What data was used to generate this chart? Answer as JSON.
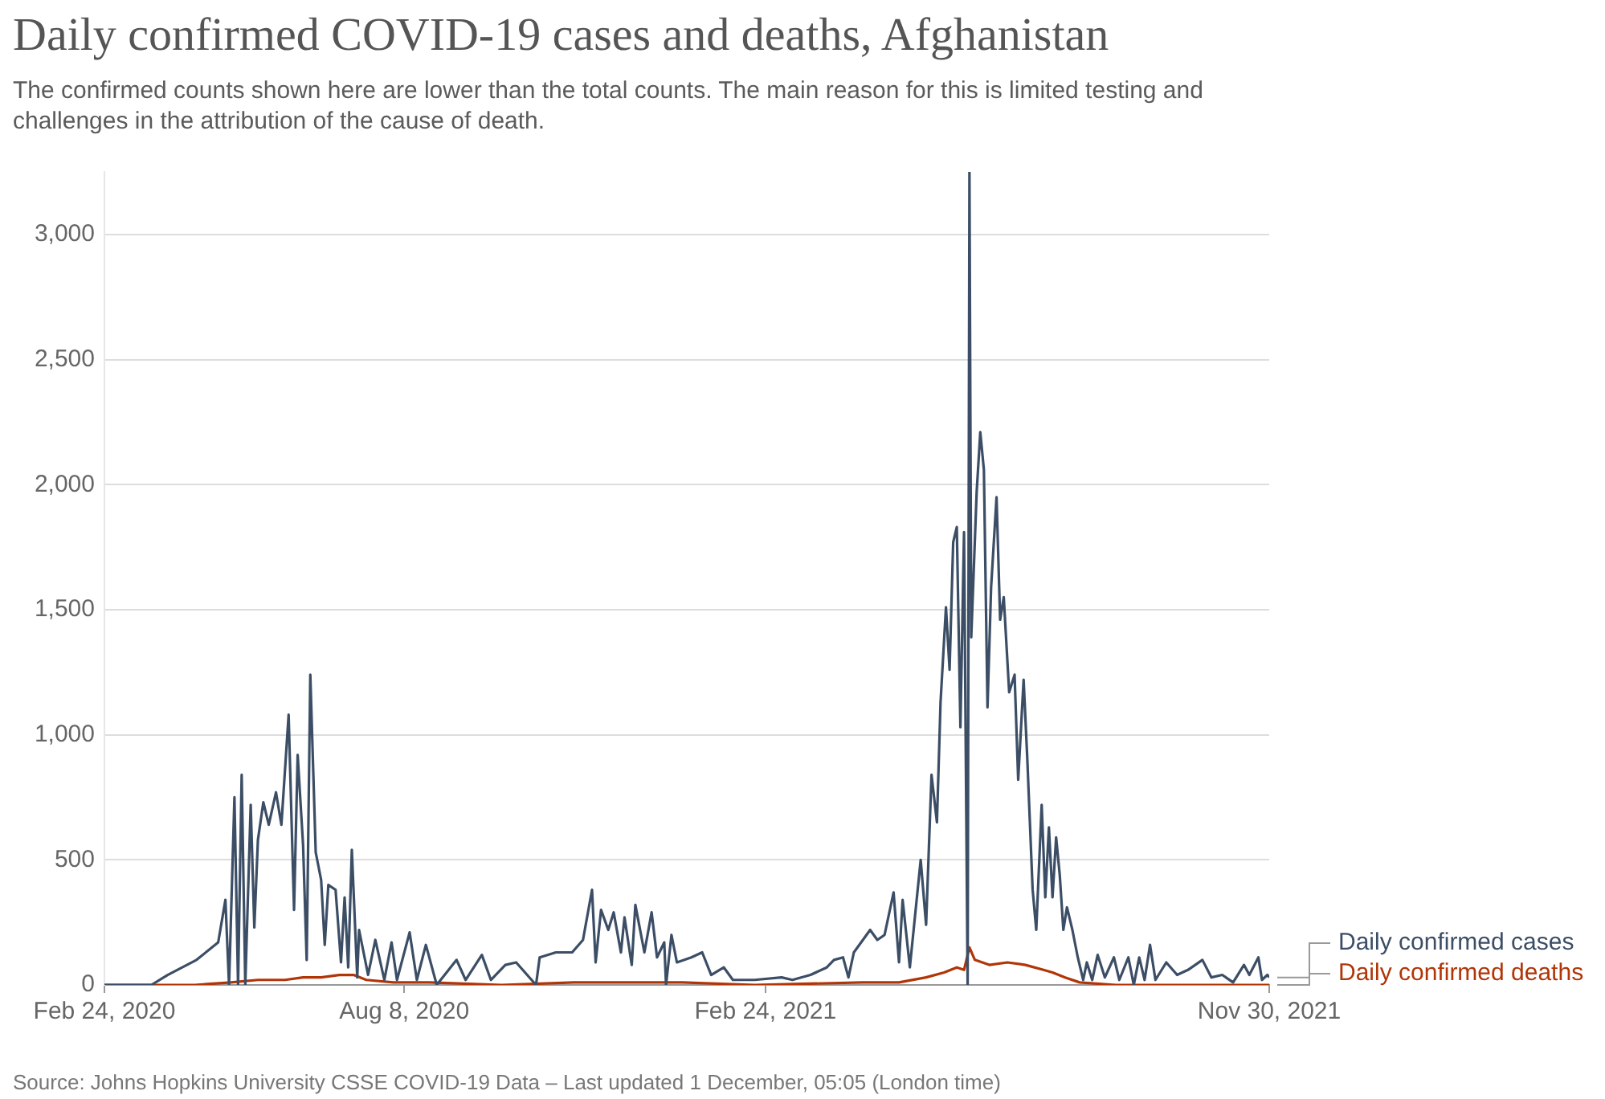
{
  "chart_data": {
    "type": "line",
    "title": "Daily confirmed COVID-19 cases and deaths, Afghanistan",
    "subtitle": "The confirmed counts shown here are lower than the total counts. The main reason for this is limited testing and challenges in the attribution of the cause of death.",
    "annotations": [
      "Source: Johns Hopkins University CSSE COVID-19 Data – Last updated 1 December, 05:05 (London time)"
    ],
    "xlim": [
      "2020-02-24",
      "2021-11-30"
    ],
    "xticks": [
      {
        "value": "2020-02-24",
        "label": "Feb 24, 2020"
      },
      {
        "value": "2020-08-08",
        "label": "Aug 8, 2020"
      },
      {
        "value": "2021-02-24",
        "label": "Feb 24, 2021"
      },
      {
        "value": "2021-11-30",
        "label": "Nov 30, 2021"
      }
    ],
    "ylim": [
      0,
      3250
    ],
    "yticks": [
      0,
      500,
      {
        "value": 1000,
        "label": "1,000"
      },
      {
        "value": 1500,
        "label": "1,500"
      },
      {
        "value": 2000,
        "label": "2,000"
      },
      {
        "value": 2500,
        "label": "2,500"
      },
      {
        "value": 3000,
        "label": "3,000"
      }
    ],
    "grid": "y",
    "series": [
      {
        "name": "Daily confirmed cases",
        "color": "#3c4e66",
        "x": [
          "2020-02-24",
          "2020-03-21",
          "2020-03-30",
          "2020-04-15",
          "2020-04-27",
          "2020-05-01",
          "2020-05-03",
          "2020-05-06",
          "2020-05-08",
          "2020-05-10",
          "2020-05-12",
          "2020-05-15",
          "2020-05-17",
          "2020-05-19",
          "2020-05-22",
          "2020-05-25",
          "2020-05-29",
          "2020-06-01",
          "2020-06-05",
          "2020-06-08",
          "2020-06-10",
          "2020-06-13",
          "2020-06-15",
          "2020-06-17",
          "2020-06-20",
          "2020-06-23",
          "2020-06-25",
          "2020-06-27",
          "2020-07-01",
          "2020-07-04",
          "2020-07-06",
          "2020-07-08",
          "2020-07-10",
          "2020-07-13",
          "2020-07-14",
          "2020-07-19",
          "2020-07-23",
          "2020-07-28",
          "2020-08-01",
          "2020-08-04",
          "2020-08-11",
          "2020-08-15",
          "2020-08-20",
          "2020-08-26",
          "2020-09-06",
          "2020-09-11",
          "2020-09-20",
          "2020-09-25",
          "2020-10-03",
          "2020-10-09",
          "2020-10-20",
          "2020-10-22",
          "2020-10-31",
          "2020-11-09",
          "2020-11-15",
          "2020-11-20",
          "2020-11-22",
          "2020-11-25",
          "2020-11-29",
          "2020-12-02",
          "2020-12-06",
          "2020-12-08",
          "2020-12-12",
          "2020-12-14",
          "2020-12-19",
          "2020-12-23",
          "2020-12-26",
          "2020-12-30",
          "2020-12-31",
          "2021-01-03",
          "2021-01-06",
          "2021-01-14",
          "2021-01-20",
          "2021-01-25",
          "2021-02-01",
          "2021-02-06",
          "2021-02-18",
          "2021-03-05",
          "2021-03-11",
          "2021-03-21",
          "2021-03-30",
          "2021-04-03",
          "2021-04-08",
          "2021-04-11",
          "2021-04-14",
          "2021-04-19",
          "2021-04-23",
          "2021-04-27",
          "2021-05-01",
          "2021-05-06",
          "2021-05-09",
          "2021-05-11",
          "2021-05-15",
          "2021-05-21",
          "2021-05-24",
          "2021-05-27",
          "2021-05-30",
          "2021-06-01",
          "2021-06-04",
          "2021-06-06",
          "2021-06-08",
          "2021-06-10",
          "2021-06-12",
          "2021-06-14",
          "2021-06-16",
          "2021-06-17",
          "2021-06-18",
          "2021-06-21",
          "2021-06-23",
          "2021-06-25",
          "2021-06-27",
          "2021-06-29",
          "2021-07-02",
          "2021-07-04",
          "2021-07-06",
          "2021-07-09",
          "2021-07-12",
          "2021-07-14",
          "2021-07-17",
          "2021-07-19",
          "2021-07-22",
          "2021-07-24",
          "2021-07-27",
          "2021-07-29",
          "2021-07-31",
          "2021-08-02",
          "2021-08-04",
          "2021-08-06",
          "2021-08-08",
          "2021-08-10",
          "2021-08-13",
          "2021-08-16",
          "2021-08-19",
          "2021-08-21",
          "2021-08-24",
          "2021-08-27",
          "2021-08-31",
          "2021-09-05",
          "2021-09-08",
          "2021-09-13",
          "2021-09-16",
          "2021-09-19",
          "2021-09-22",
          "2021-09-25",
          "2021-09-28",
          "2021-10-04",
          "2021-10-10",
          "2021-10-16",
          "2021-10-24",
          "2021-10-29",
          "2021-11-04",
          "2021-11-10",
          "2021-11-16",
          "2021-11-19",
          "2021-11-24",
          "2021-11-26",
          "2021-11-29",
          "2021-11-30"
        ],
        "values": [
          0,
          0,
          40,
          100,
          170,
          340,
          0,
          750,
          0,
          840,
          0,
          720,
          230,
          580,
          730,
          640,
          770,
          640,
          1080,
          300,
          920,
          560,
          100,
          1240,
          530,
          420,
          160,
          400,
          380,
          90,
          350,
          70,
          540,
          30,
          220,
          40,
          180,
          20,
          170,
          20,
          210,
          20,
          160,
          0,
          100,
          20,
          120,
          20,
          80,
          90,
          0,
          110,
          130,
          130,
          180,
          380,
          90,
          300,
          220,
          290,
          130,
          270,
          80,
          320,
          130,
          290,
          110,
          170,
          0,
          200,
          90,
          110,
          130,
          40,
          70,
          20,
          20,
          30,
          20,
          40,
          70,
          100,
          110,
          30,
          130,
          180,
          220,
          180,
          200,
          370,
          90,
          340,
          70,
          500,
          240,
          840,
          650,
          1130,
          1510,
          1260,
          1770,
          1830,
          1030,
          1810,
          0,
          3250,
          1390,
          1970,
          2210,
          2060,
          1110,
          1590,
          1950,
          1460,
          1550,
          1170,
          1240,
          820,
          1220,
          910,
          380,
          220,
          720,
          350,
          630,
          350,
          590,
          440,
          220,
          310,
          220,
          110,
          20,
          90,
          20,
          120,
          30,
          110,
          20,
          110,
          0,
          110,
          20,
          160,
          20,
          90,
          40,
          60,
          100,
          30,
          40,
          10,
          80,
          40,
          110,
          20,
          40,
          30
        ]
      },
      {
        "name": "Daily confirmed deaths",
        "color": "#b13507",
        "x": [
          "2020-02-24",
          "2020-03-25",
          "2020-04-14",
          "2020-05-04",
          "2020-05-19",
          "2020-06-03",
          "2020-06-13",
          "2020-06-23",
          "2020-07-03",
          "2020-07-11",
          "2020-07-18",
          "2020-08-02",
          "2020-08-22",
          "2020-10-01",
          "2020-11-10",
          "2020-12-10",
          "2021-01-09",
          "2021-02-18",
          "2021-04-19",
          "2021-05-09",
          "2021-05-24",
          "2021-06-03",
          "2021-06-10",
          "2021-06-14",
          "2021-06-17",
          "2021-06-20",
          "2021-06-28",
          "2021-07-08",
          "2021-07-18",
          "2021-07-28",
          "2021-08-02",
          "2021-08-09",
          "2021-08-17",
          "2021-09-06",
          "2021-11-30"
        ],
        "values": [
          0,
          0,
          0,
          10,
          20,
          20,
          30,
          30,
          40,
          40,
          20,
          10,
          10,
          0,
          10,
          10,
          10,
          0,
          10,
          10,
          30,
          50,
          70,
          60,
          150,
          100,
          80,
          90,
          80,
          60,
          50,
          30,
          10,
          0,
          0
        ]
      }
    ]
  }
}
